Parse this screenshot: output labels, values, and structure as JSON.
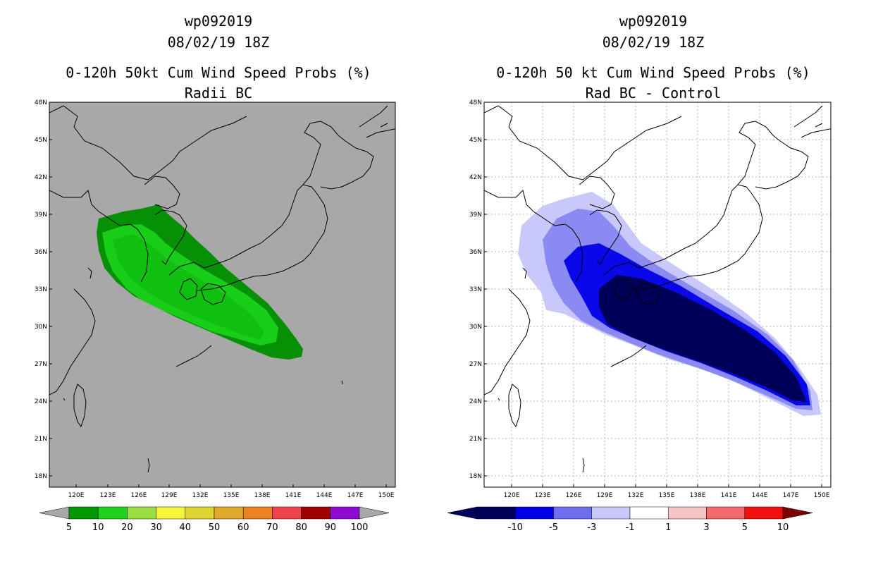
{
  "panels": [
    {
      "title_line1": "wp092019",
      "title_line2": "08/02/19 18Z",
      "title_line3": "0-120h 50kt Cum Wind Speed Probs (%)",
      "title_line4": "Radii BC",
      "background": "#a8a8a8",
      "contours": [
        {
          "value": "5",
          "color": "#069006"
        },
        {
          "value": "20",
          "color": "#18ce18"
        },
        {
          "value": "10",
          "color": "#10c010"
        }
      ]
    },
    {
      "title_line1": "wp092019",
      "title_line2": "08/02/19 18Z",
      "title_line3": "0-120h 50 kt Cum Wind Speed Probs (%)",
      "title_line4": "Rad BC - Control",
      "background": "#ffffff",
      "contours": [
        {
          "value": "-1",
          "color": "#c8c8fa"
        },
        {
          "value": "-3",
          "color": "#8a8af2"
        },
        {
          "value": "-5",
          "color": "#0808e8"
        },
        {
          "value": "-10",
          "color": "#00005a"
        }
      ]
    }
  ],
  "axes": {
    "lat_labels": [
      "48N",
      "45N",
      "42N",
      "39N",
      "36N",
      "33N",
      "30N",
      "27N",
      "24N",
      "21N",
      "18N"
    ],
    "lon_labels": [
      "120E",
      "123E",
      "126E",
      "129E",
      "132E",
      "135E",
      "138E",
      "141E",
      "144E",
      "147E",
      "150E"
    ]
  },
  "colorbars": {
    "left": {
      "colors": [
        "#009900",
        "#1ed31e",
        "#98e040",
        "#f5f53a",
        "#dfd430",
        "#e0a828",
        "#ee8222",
        "#f0424a",
        "#a00000",
        "#8c0ad2"
      ],
      "labels": [
        "5",
        "10",
        "20",
        "30",
        "40",
        "50",
        "60",
        "70",
        "80",
        "90",
        "100"
      ]
    },
    "right": {
      "colors": [
        "#00005a",
        "#0000e8",
        "#6e6ef0",
        "#c8c8fa",
        "#ffffff",
        "#f7c4c4",
        "#f56b6b",
        "#f01010"
      ],
      "labels": [
        "-10",
        "-5",
        "-3",
        "-1",
        "1",
        "3",
        "5",
        "10"
      ]
    }
  }
}
